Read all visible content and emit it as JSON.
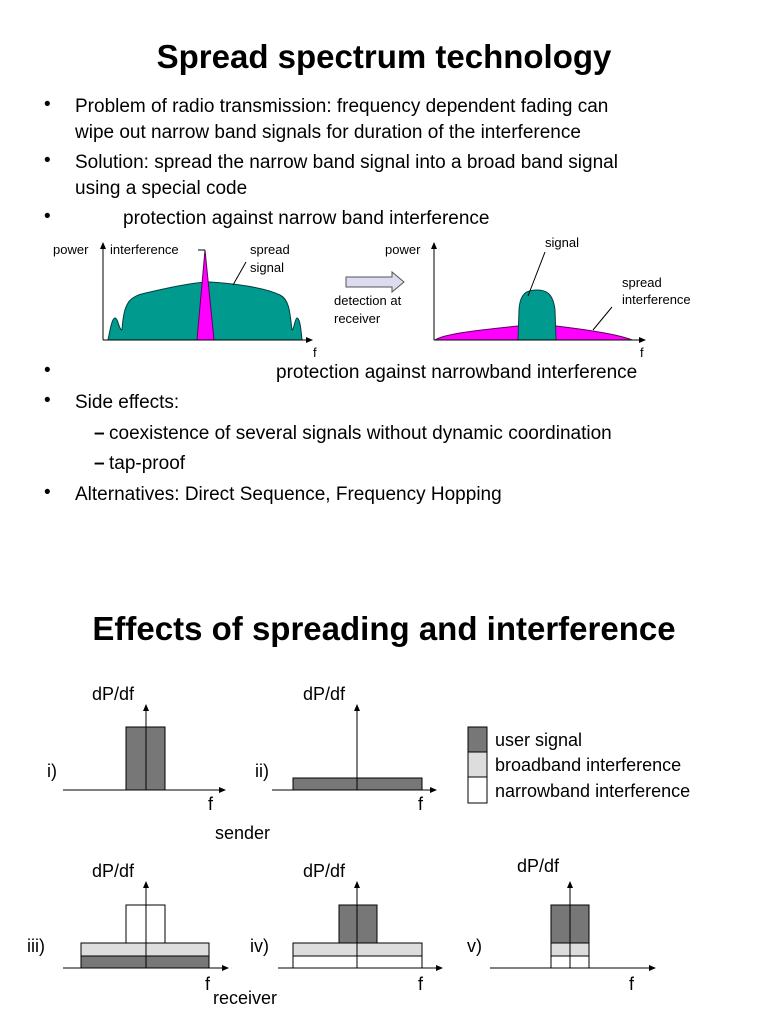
{
  "slide1": {
    "title": "Spread spectrum technology",
    "bullets": [
      {
        "lines": [
          "Problem of radio transmission: frequency dependent fading can",
          "wipe out narrow band signals for duration of the interference"
        ]
      },
      {
        "lines": [
          "Solution: spread the narrow band signal into a broad band signal",
          "using a special code"
        ]
      },
      {
        "lines": [
          "protection against narrow band interference"
        ]
      },
      {
        "lines": [
          "protection against narrowband interference"
        ]
      },
      {
        "lines": [
          "Side effects:"
        ]
      },
      {
        "lines": [
          "Alternatives: Direct Sequence, Frequency Hopping"
        ]
      }
    ],
    "sub_bullets": [
      "coexistence of several signals without dynamic coordination",
      "tap-proof"
    ],
    "diagram": {
      "left": {
        "y_label": "power",
        "x_label": "f",
        "interference_label": "interference",
        "spread_label": [
          "spread",
          "signal"
        ]
      },
      "arrow_label": [
        "detection at",
        "receiver"
      ],
      "right": {
        "y_label": "power",
        "x_label": "f",
        "signal_label": "signal",
        "spread_label": [
          "spread",
          "interference"
        ]
      },
      "colors": {
        "signal": "#009a8e",
        "interference": "#ff00ff"
      }
    }
  },
  "slide2": {
    "title": "Effects of spreading and interference",
    "plots": [
      {
        "roman": "i)",
        "y_label": "dP/df",
        "x_label": "f"
      },
      {
        "roman": "ii)",
        "y_label": "dP/df",
        "x_label": "f"
      },
      {
        "roman": "iii)",
        "y_label": "dP/df",
        "x_label": "f"
      },
      {
        "roman": "iv)",
        "y_label": "dP/df",
        "x_label": "f"
      },
      {
        "roman": "v)",
        "y_label": "dP/df",
        "x_label": "f"
      }
    ],
    "sender_label": "sender",
    "receiver_label": "receiver",
    "legend": [
      {
        "label": "user signal",
        "color": "#777777"
      },
      {
        "label": "broadband interference",
        "color": "#dddddd"
      },
      {
        "label": "narrowband interference",
        "color": "#ffffff"
      }
    ]
  }
}
